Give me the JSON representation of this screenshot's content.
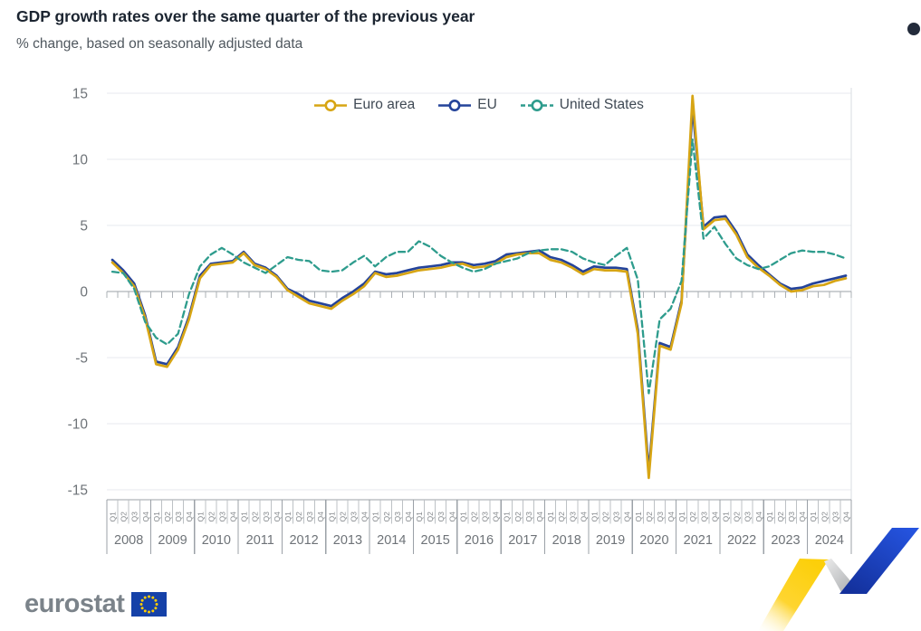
{
  "header": {
    "title": "GDP growth rates over the same quarter of the previous year",
    "subtitle": "% change, based on seasonally adjusted data"
  },
  "controls": {
    "menu_dot_color": "#232b3b"
  },
  "legend": [
    {
      "label": "Euro area",
      "color": "#d7a514",
      "style": "solid"
    },
    {
      "label": "EU",
      "color": "#24439a",
      "style": "solid"
    },
    {
      "label": "United States",
      "color": "#2e9c8d",
      "style": "dash"
    }
  ],
  "chart_data": {
    "type": "line",
    "title": "GDP growth rates over the same quarter of the previous year",
    "subtitle": "% change, based on seasonally adjusted data",
    "ylabel": "% change",
    "ylim": [
      -15,
      15
    ],
    "yticks": [
      15,
      10,
      5,
      0,
      -5,
      -10,
      -15
    ],
    "grid": true,
    "legend_position": "top-center",
    "x_years": [
      2008,
      2009,
      2010,
      2011,
      2012,
      2013,
      2014,
      2015,
      2016,
      2017,
      2018,
      2019,
      2020,
      2021,
      2022,
      2023,
      2024
    ],
    "quarter_labels": [
      "Q1",
      "Q2",
      "Q3",
      "Q4"
    ],
    "x_note": "quarterly, 2008Q1 - 2024Q4",
    "series": [
      {
        "name": "Euro area",
        "color": "#d7a514",
        "style": "solid",
        "values": [
          2.2,
          1.4,
          0.4,
          -2.0,
          -5.5,
          -5.7,
          -4.4,
          -2.1,
          1.0,
          2.0,
          2.1,
          2.2,
          2.9,
          2.0,
          1.7,
          1.1,
          0.1,
          -0.4,
          -0.9,
          -1.1,
          -1.3,
          -0.7,
          -0.2,
          0.4,
          1.4,
          1.1,
          1.2,
          1.4,
          1.6,
          1.7,
          1.8,
          2.0,
          2.1,
          1.8,
          1.9,
          2.1,
          2.6,
          2.8,
          2.9,
          2.9,
          2.4,
          2.2,
          1.8,
          1.3,
          1.7,
          1.6,
          1.6,
          1.5,
          -3.2,
          -14.1,
          -4.1,
          -4.4,
          -0.9,
          14.8,
          4.7,
          5.4,
          5.5,
          4.3,
          2.6,
          1.8,
          1.2,
          0.5,
          0.0,
          0.1,
          0.4,
          0.5,
          0.8,
          1.0
        ]
      },
      {
        "name": "EU",
        "color": "#24439a",
        "style": "solid",
        "values": [
          2.4,
          1.6,
          0.6,
          -1.8,
          -5.3,
          -5.5,
          -4.2,
          -1.9,
          1.2,
          2.1,
          2.2,
          2.3,
          3.0,
          2.1,
          1.8,
          1.2,
          0.2,
          -0.2,
          -0.7,
          -0.9,
          -1.1,
          -0.5,
          0.0,
          0.6,
          1.5,
          1.3,
          1.4,
          1.6,
          1.8,
          1.9,
          2.0,
          2.2,
          2.2,
          2.0,
          2.1,
          2.3,
          2.8,
          2.9,
          3.0,
          3.1,
          2.6,
          2.4,
          2.0,
          1.5,
          1.9,
          1.8,
          1.8,
          1.7,
          -2.9,
          -13.6,
          -3.9,
          -4.2,
          -0.7,
          14.0,
          4.9,
          5.6,
          5.7,
          4.5,
          2.8,
          2.0,
          1.3,
          0.6,
          0.2,
          0.3,
          0.6,
          0.8,
          1.0,
          1.2
        ]
      },
      {
        "name": "United States",
        "color": "#2e9c8d",
        "style": "dash",
        "values": [
          1.5,
          1.4,
          0.2,
          -2.3,
          -3.5,
          -4.0,
          -3.2,
          -0.2,
          1.9,
          2.8,
          3.3,
          2.8,
          2.2,
          1.8,
          1.4,
          2.0,
          2.6,
          2.4,
          2.3,
          1.6,
          1.5,
          1.6,
          2.2,
          2.7,
          1.9,
          2.6,
          3.0,
          3.0,
          3.8,
          3.4,
          2.7,
          2.2,
          1.8,
          1.5,
          1.7,
          2.1,
          2.3,
          2.5,
          2.9,
          3.1,
          3.2,
          3.2,
          3.0,
          2.5,
          2.2,
          2.0,
          2.7,
          3.3,
          0.9,
          -7.7,
          -2.1,
          -1.3,
          0.8,
          11.5,
          4.0,
          4.9,
          3.6,
          2.5,
          2.0,
          1.7,
          1.9,
          2.4,
          2.9,
          3.1,
          3.0,
          3.0,
          2.8,
          2.5
        ]
      }
    ]
  },
  "footer": {
    "logo_text": "eurostat",
    "flag": {
      "background": "#1541a8",
      "stars": "#ffcc00"
    },
    "ribbon_colors": {
      "yellow": "#ffd41c",
      "grey": "#b9bcbf",
      "blue": "#2251d5"
    }
  }
}
